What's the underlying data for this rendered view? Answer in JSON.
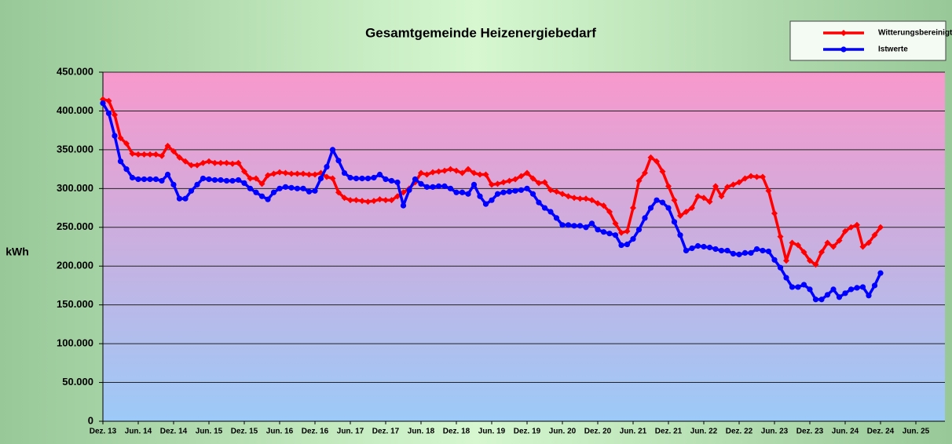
{
  "chart_data": {
    "type": "line",
    "title": "Gesamtgemeinde Heizenergiebedarf",
    "y_label": "kWh",
    "categories": [
      "Dez. 13",
      null,
      null,
      null,
      null,
      null,
      "Jun. 14",
      null,
      null,
      null,
      null,
      null,
      "Dez. 14",
      null,
      null,
      null,
      null,
      null,
      "Jun. 15",
      null,
      null,
      null,
      null,
      null,
      "Dez. 15",
      null,
      null,
      null,
      null,
      null,
      "Jun. 16",
      null,
      null,
      null,
      null,
      null,
      "Dez. 16",
      null,
      null,
      null,
      null,
      null,
      "Jun. 17",
      null,
      null,
      null,
      null,
      null,
      "Dez. 17",
      null,
      null,
      null,
      null,
      null,
      "Jun. 18",
      null,
      null,
      null,
      null,
      null,
      "Dez. 18",
      null,
      null,
      null,
      null,
      null,
      "Jun. 19",
      null,
      null,
      null,
      null,
      null,
      "Dez. 19",
      null,
      null,
      null,
      null,
      null,
      "Jun. 20",
      null,
      null,
      null,
      null,
      null,
      "Dez. 20",
      null,
      null,
      null,
      null,
      null,
      "Jun. 21",
      null,
      null,
      null,
      null,
      null,
      "Dez. 21",
      null,
      null,
      null,
      null,
      null,
      "Jun. 22",
      null,
      null,
      null,
      null,
      null,
      "Dez. 22",
      null,
      null,
      null,
      null,
      null,
      "Jun. 23",
      null,
      null,
      null,
      null,
      null,
      "Dez. 23",
      null,
      null,
      null,
      null,
      null,
      "Jun. 24",
      null,
      null,
      null,
      null,
      null,
      "Dez. 24",
      null,
      null,
      null,
      null,
      null,
      "Jun. 25"
    ],
    "series": [
      {
        "name": "Witterungsbereinigt",
        "color": "#ff0000",
        "marker": "diamond",
        "values": [
          415000,
          413000,
          395000,
          365000,
          358000,
          345000,
          344000,
          344000,
          344000,
          344000,
          342000,
          355000,
          348000,
          340000,
          335000,
          330000,
          330000,
          333000,
          335000,
          333000,
          333000,
          333000,
          332000,
          333000,
          322000,
          313000,
          313000,
          306000,
          317000,
          319000,
          321000,
          320000,
          319000,
          319000,
          319000,
          318000,
          318000,
          320000,
          315000,
          313000,
          295000,
          288000,
          285000,
          285000,
          284000,
          283000,
          284000,
          286000,
          285000,
          285000,
          290000,
          295000,
          300000,
          308000,
          320000,
          318000,
          321000,
          322000,
          323000,
          325000,
          323000,
          320000,
          325000,
          320000,
          318000,
          318000,
          305000,
          306000,
          308000,
          310000,
          312000,
          316000,
          320000,
          313000,
          307000,
          308000,
          298000,
          296000,
          293000,
          290000,
          288000,
          287000,
          287000,
          285000,
          281000,
          278000,
          270000,
          255000,
          243000,
          245000,
          275000,
          310000,
          320000,
          340000,
          335000,
          322000,
          303000,
          285000,
          265000,
          270000,
          275000,
          290000,
          288000,
          283000,
          303000,
          290000,
          302000,
          305000,
          308000,
          313000,
          316000,
          315000,
          315000,
          297000,
          268000,
          238000,
          207000,
          230000,
          227000,
          218000,
          207000,
          202000,
          218000,
          230000,
          225000,
          233000,
          245000,
          250000,
          253000,
          225000,
          230000,
          240000,
          250000,
          null,
          null,
          null,
          null,
          null,
          null
        ]
      },
      {
        "name": "Istwerte",
        "color": "#0000ff",
        "marker": "circle",
        "values": [
          410000,
          397000,
          368000,
          335000,
          325000,
          314000,
          312000,
          312000,
          312000,
          312000,
          310000,
          318000,
          305000,
          287000,
          287000,
          297000,
          305000,
          313000,
          312000,
          311000,
          311000,
          310000,
          310000,
          311000,
          307000,
          300000,
          295000,
          290000,
          286000,
          295000,
          300000,
          302000,
          301000,
          300000,
          300000,
          296000,
          297000,
          313000,
          328000,
          350000,
          336000,
          320000,
          314000,
          313000,
          313000,
          313000,
          314000,
          318000,
          312000,
          310000,
          308000,
          278000,
          298000,
          312000,
          306000,
          302000,
          302000,
          303000,
          303000,
          300000,
          295000,
          295000,
          293000,
          305000,
          290000,
          280000,
          285000,
          293000,
          295000,
          296000,
          297000,
          298000,
          300000,
          293000,
          282000,
          275000,
          270000,
          262000,
          253000,
          253000,
          252000,
          252000,
          250000,
          255000,
          247000,
          244000,
          242000,
          240000,
          227000,
          228000,
          235000,
          247000,
          262000,
          275000,
          285000,
          282000,
          275000,
          257000,
          240000,
          220000,
          223000,
          226000,
          225000,
          224000,
          222000,
          220000,
          220000,
          216000,
          215000,
          217000,
          217000,
          222000,
          220000,
          219000,
          208000,
          198000,
          185000,
          173000,
          173000,
          176000,
          170000,
          157000,
          157000,
          163000,
          170000,
          160000,
          165000,
          170000,
          172000,
          173000,
          162000,
          175000,
          191000,
          null,
          null,
          null,
          null,
          null,
          null
        ]
      }
    ],
    "ylim": [
      0,
      450000
    ],
    "yticks": [
      0,
      {
        "value": 50000,
        "label": "50.000"
      },
      {
        "value": 100000,
        "label": "100.000"
      },
      {
        "value": 150000,
        "label": "150.000"
      },
      {
        "value": 200000,
        "label": "200.000"
      },
      {
        "value": 250000,
        "label": "250.000"
      },
      {
        "value": 300000,
        "label": "300.000"
      },
      {
        "value": 350000,
        "label": "350.000"
      },
      {
        "value": 400000,
        "label": "400.000"
      },
      {
        "value": 450000,
        "label": "450.000"
      }
    ],
    "grid": true,
    "legend": "top-right"
  }
}
